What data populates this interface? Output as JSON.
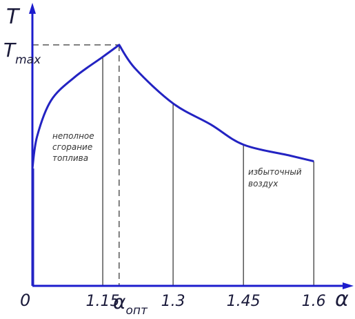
{
  "chart_data": {
    "type": "line",
    "title": "",
    "xlabel": "α",
    "ylabel": "T",
    "origin_label": "0",
    "x_ticks": [
      {
        "value": 1.15,
        "label": "1.15"
      },
      {
        "value": 1.3,
        "label": "1.3"
      },
      {
        "value": 1.45,
        "label": "1.45"
      },
      {
        "value": 1.6,
        "label": "1.6"
      }
    ],
    "x_opt": {
      "value": 1.185,
      "main": "α",
      "sub": "опт"
    },
    "y_max_label": {
      "main": "T",
      "sub": "max"
    },
    "xlim": [
      1.0,
      1.685
    ],
    "ylim": [
      0,
      1.2
    ],
    "series": [
      {
        "x": [
          1.0,
          1.01,
          1.04,
          1.09,
          1.15,
          1.185,
          1.22,
          1.3,
          1.38,
          1.45,
          1.55,
          1.6
        ],
        "values": [
          0.487,
          0.62,
          0.77,
          0.866,
          0.95,
          1.0,
          0.9,
          0.757,
          0.67,
          0.586,
          0.54,
          0.517
        ]
      }
    ],
    "annotations": [
      {
        "lines": [
          "неполное",
          "сгорание",
          "топлива"
        ]
      },
      {
        "lines": [
          "избыточный",
          "воздух"
        ]
      }
    ],
    "grid": false,
    "colors": {
      "axis": "#1c1ccd",
      "curve": "#2323c2",
      "guide": "#000000"
    }
  }
}
